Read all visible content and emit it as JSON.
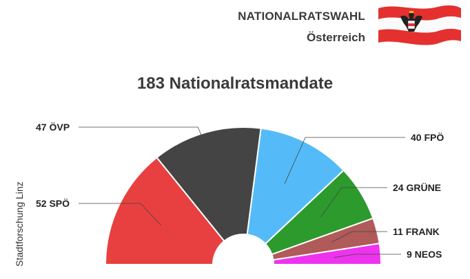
{
  "header": {
    "title": "NATIONALRATSWAHL",
    "subtitle": "Österreich"
  },
  "source_label": "Stadtforschung Linz",
  "chart_data": {
    "type": "pie",
    "title": "183 Nationalratsmandate",
    "total": 183,
    "series": [
      {
        "party": "SPÖ",
        "seats": 52,
        "label": "52  SPÖ",
        "color": "#e84040"
      },
      {
        "party": "ÖVP",
        "seats": 47,
        "label": "47  ÖVP",
        "color": "#444444"
      },
      {
        "party": "FPÖ",
        "seats": 40,
        "label": "40  FPÖ",
        "color": "#55bbf8"
      },
      {
        "party": "GRÜNE",
        "seats": 24,
        "label": "24  GRÜNE",
        "color": "#2c9a2c"
      },
      {
        "party": "FRANK",
        "seats": 11,
        "label": "11  FRANK",
        "color": "#b05a5a"
      },
      {
        "party": "NEOS",
        "seats": 9,
        "label": "9  NEOS",
        "color": "#ee33ee"
      }
    ]
  },
  "flag_icon": "austria-flag-icon"
}
